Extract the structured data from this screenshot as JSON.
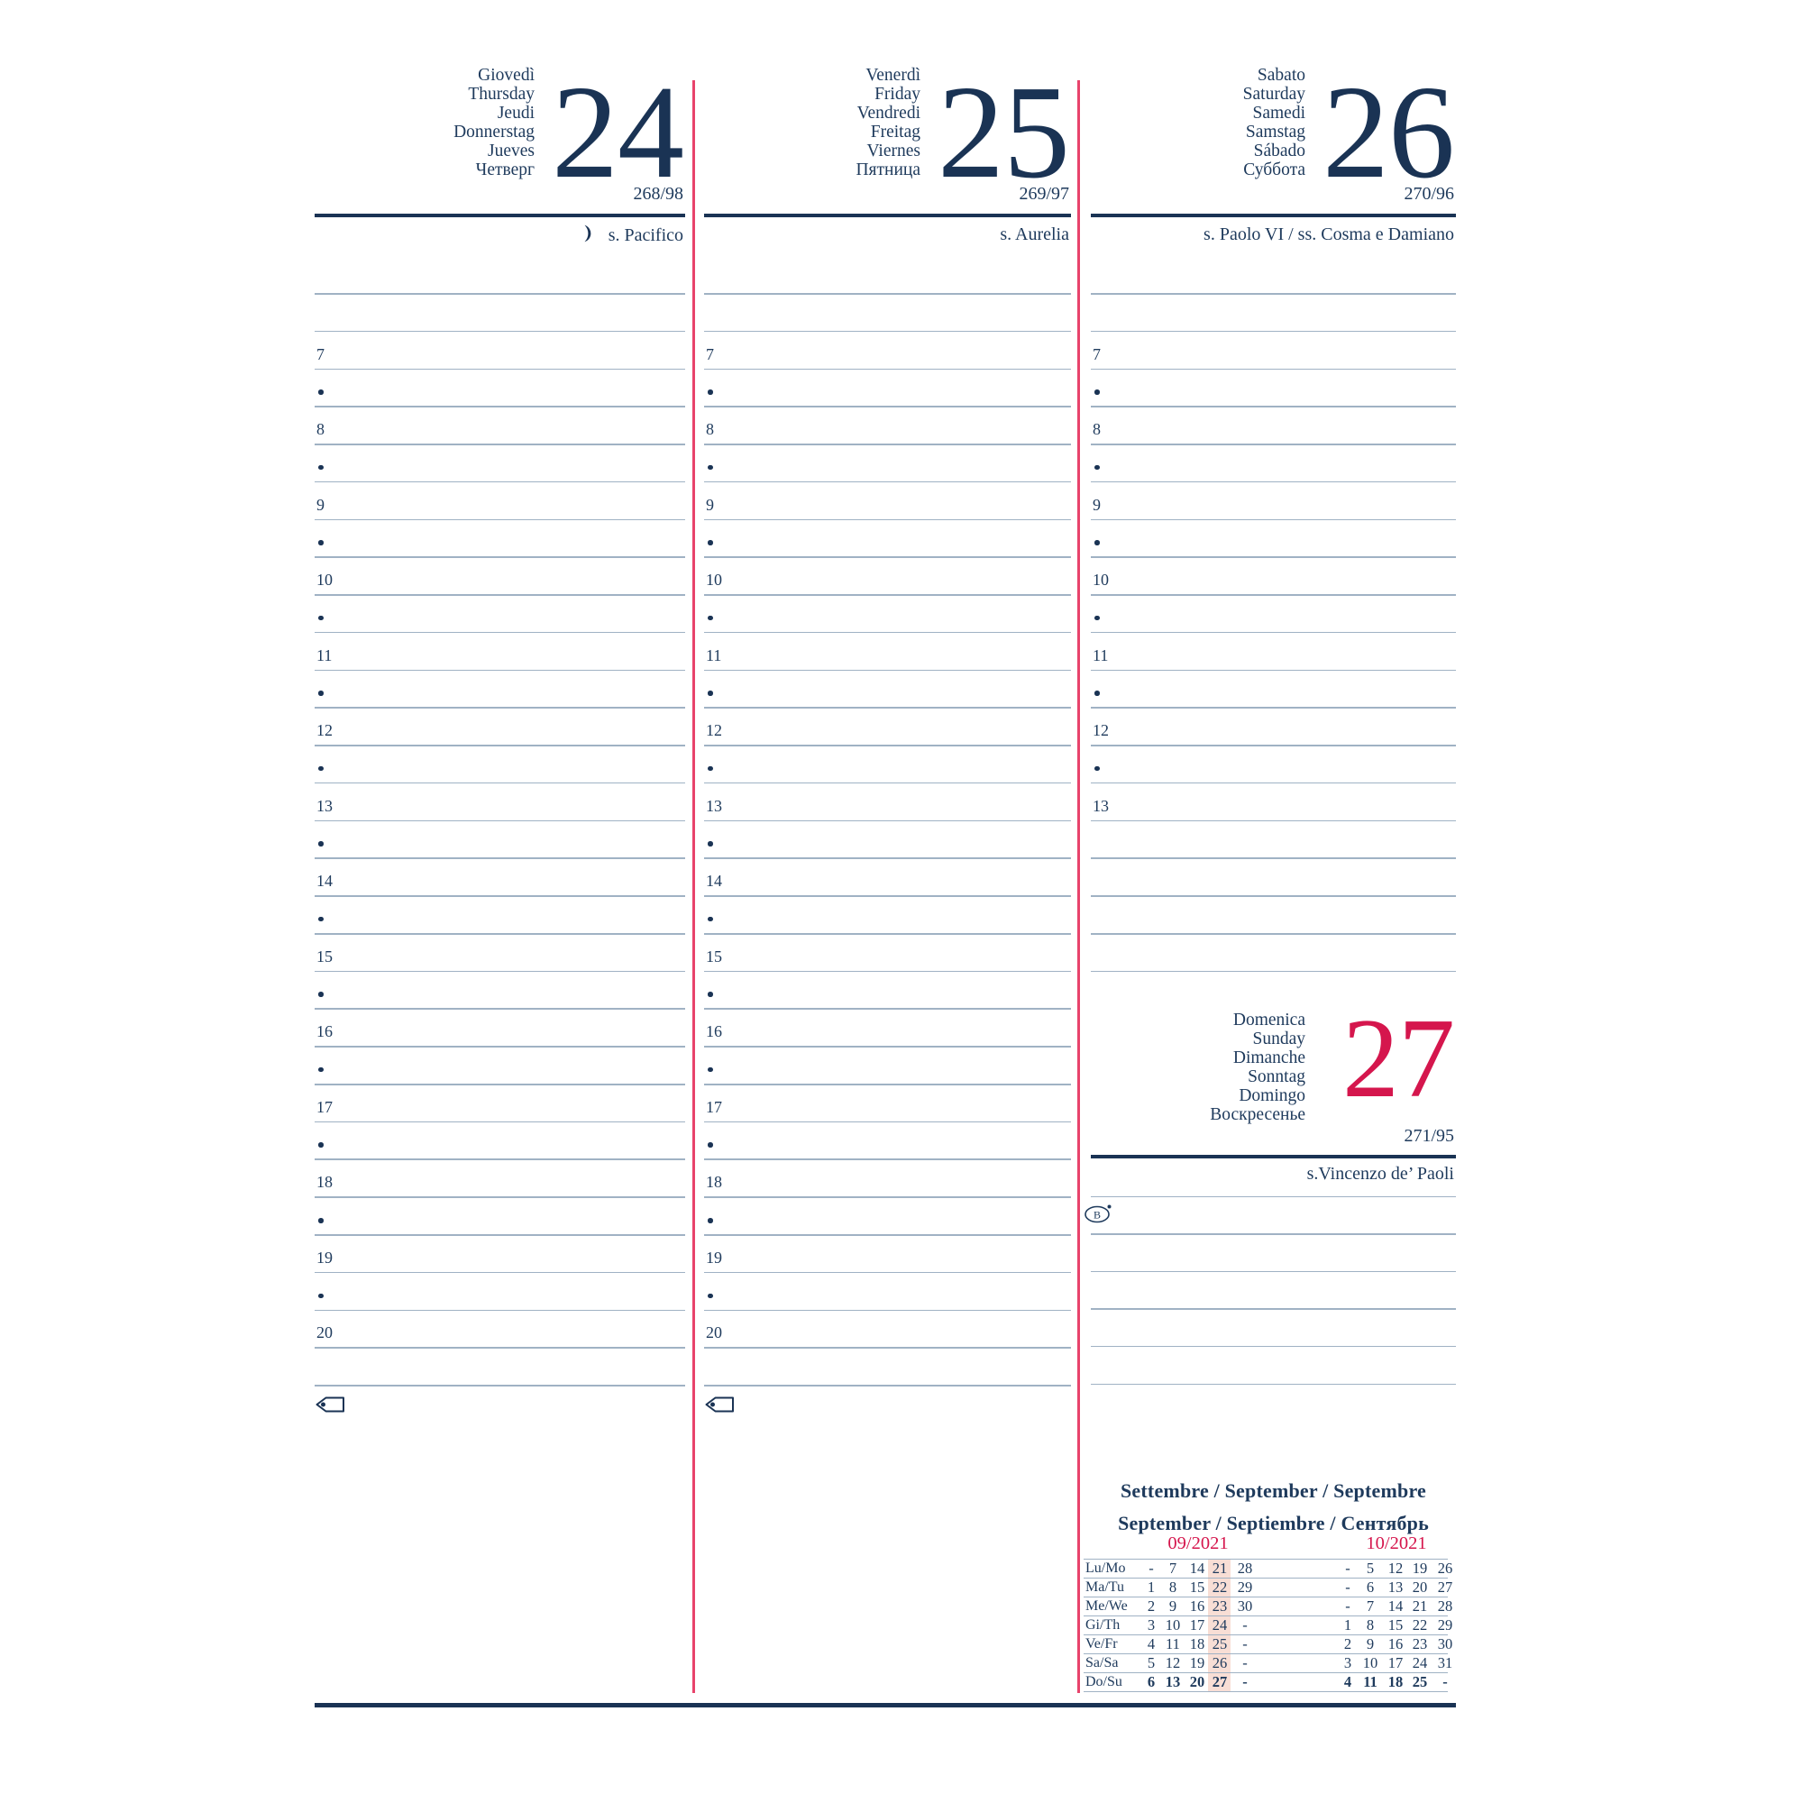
{
  "colors": {
    "navy": "#1e3a5c",
    "navy_dark": "#1a3354",
    "red_text": "#d5164d",
    "red_line": "#e8436b",
    "rule_line": "#a0b2c4",
    "week_highlight": "#f8ded5",
    "paper": "#ffffff"
  },
  "days": [
    {
      "names": [
        "Giovedì",
        "Thursday",
        "Jeudi",
        "Donnerstag",
        "Jueves",
        "Четверг"
      ],
      "number": "24",
      "day_info": "268/98",
      "saint": "s. Pacifico",
      "moon_icon": "last-quarter-moon",
      "hours": [
        "7",
        "8",
        "9",
        "10",
        "11",
        "12",
        "13",
        "14",
        "15",
        "16",
        "17",
        "18",
        "19",
        "20"
      ]
    },
    {
      "names": [
        "Venerdì",
        "Friday",
        "Vendredi",
        "Freitag",
        "Viernes",
        "Пятница"
      ],
      "number": "25",
      "day_info": "269/97",
      "saint": "s. Aurelia",
      "hours": [
        "7",
        "8",
        "9",
        "10",
        "11",
        "12",
        "13",
        "14",
        "15",
        "16",
        "17",
        "18",
        "19",
        "20"
      ]
    },
    {
      "names": [
        "Sabato",
        "Saturday",
        "Samedi",
        "Samstag",
        "Sábado",
        "Суббота"
      ],
      "number": "26",
      "day_info": "270/96",
      "saint": "s. Paolo VI / ss. Cosma e Damiano",
      "hours": [
        "7",
        "8",
        "9",
        "10",
        "11",
        "12",
        "13"
      ]
    }
  ],
  "sunday": {
    "names": [
      "Domenica",
      "Sunday",
      "Dimanche",
      "Sonntag",
      "Domingo",
      "Воскресенье"
    ],
    "number": "27",
    "day_info": "271/95",
    "saint": "s.Vincenzo de’ Paoli",
    "symbol": "B"
  },
  "mini_calendar": {
    "title_line1": "Settembre / September / Septembre",
    "title_line2": "September / Septiembre / Сентябрь",
    "row_labels": [
      "Lu/Mo",
      "Ma/Tu",
      "Me/We",
      "Gi/Th",
      "Ve/Fr",
      "Sa/Sa",
      "Do/Su"
    ],
    "bold_row_index": 6,
    "months": [
      {
        "header": "09/2021",
        "highlight_column_index": 3,
        "rows": [
          [
            "-",
            "7",
            "14",
            "21",
            "28"
          ],
          [
            "1",
            "8",
            "15",
            "22",
            "29"
          ],
          [
            "2",
            "9",
            "16",
            "23",
            "30"
          ],
          [
            "3",
            "10",
            "17",
            "24",
            "-"
          ],
          [
            "4",
            "11",
            "18",
            "25",
            "-"
          ],
          [
            "5",
            "12",
            "19",
            "26",
            "-"
          ],
          [
            "6",
            "13",
            "20",
            "27",
            "-"
          ]
        ]
      },
      {
        "header": "10/2021",
        "rows": [
          [
            "-",
            "5",
            "12",
            "19",
            "26"
          ],
          [
            "-",
            "6",
            "13",
            "20",
            "27"
          ],
          [
            "-",
            "7",
            "14",
            "21",
            "28"
          ],
          [
            "1",
            "8",
            "15",
            "22",
            "29"
          ],
          [
            "2",
            "9",
            "16",
            "23",
            "30"
          ],
          [
            "3",
            "10",
            "17",
            "24",
            "31"
          ],
          [
            "4",
            "11",
            "18",
            "25",
            "-"
          ]
        ]
      }
    ]
  }
}
